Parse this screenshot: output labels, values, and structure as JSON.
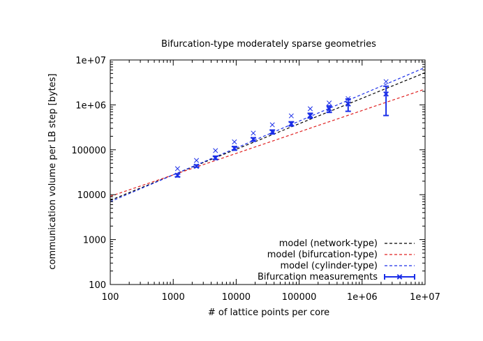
{
  "chart_data": {
    "type": "scatter",
    "title": "Bifurcation-type moderately sparse geometries",
    "xlabel": "# of lattice points per core",
    "ylabel": "communication volume per LB step [bytes]",
    "xscale": "log",
    "yscale": "log",
    "xlim": [
      100,
      10000000
    ],
    "ylim": [
      100,
      10000000
    ],
    "x_ticks": [
      {
        "value": 100,
        "label": "100"
      },
      {
        "value": 1000,
        "label": "1000"
      },
      {
        "value": 10000,
        "label": "10000"
      },
      {
        "value": 100000,
        "label": "100000"
      },
      {
        "value": 1000000,
        "label": "1e+06"
      },
      {
        "value": 10000000,
        "label": "1e+07"
      }
    ],
    "y_ticks": [
      {
        "value": 100,
        "label": "100"
      },
      {
        "value": 1000,
        "label": "1000"
      },
      {
        "value": 10000,
        "label": "10000"
      },
      {
        "value": 100000,
        "label": "100000"
      },
      {
        "value": 1000000,
        "label": "1e+06"
      },
      {
        "value": 10000000,
        "label": "1e+07"
      }
    ],
    "grid": false,
    "legend_position": "bottom-right",
    "series": [
      {
        "name": "model (network-type)",
        "kind": "line",
        "style": "dashed",
        "color": "#000000",
        "x": [
          100,
          10000000
        ],
        "y": [
          7500,
          5200000
        ]
      },
      {
        "name": "model (bifurcation-type)",
        "kind": "line",
        "style": "dashed",
        "color": "#e02020",
        "x": [
          100,
          10000000
        ],
        "y": [
          9200,
          2250000
        ]
      },
      {
        "name": "model (cylinder-type)",
        "kind": "line",
        "style": "dashed",
        "color": "#1a2ee8",
        "x": [
          100,
          10000000
        ],
        "y": [
          7000,
          6800000
        ]
      },
      {
        "name": "Bifurcation measurements",
        "kind": "errorbars",
        "color": "#1a2ee8",
        "x": [
          1170,
          2340,
          4690,
          9370,
          18700,
          37500,
          75000,
          150000,
          300000,
          600000,
          2400000
        ],
        "y": [
          27000,
          43000,
          66000,
          108000,
          170000,
          250000,
          380000,
          580000,
          820000,
          1050000,
          1750000
        ],
        "ylow": [
          25000,
          41000,
          61000,
          98000,
          155000,
          225000,
          340000,
          510000,
          680000,
          720000,
          580000
        ],
        "yhigh": [
          29000,
          46000,
          72000,
          118000,
          185000,
          275000,
          420000,
          650000,
          950000,
          1350000,
          2600000
        ]
      },
      {
        "kind": "points",
        "marker": "x",
        "color": "#1a2ee8",
        "x": [
          1170,
          2340,
          4690,
          9370,
          18700,
          37500,
          75000,
          150000,
          300000,
          600000,
          2400000
        ],
        "y": [
          38000,
          58000,
          96000,
          150000,
          235000,
          360000,
          570000,
          820000,
          1100000,
          1380000,
          3300000
        ]
      }
    ]
  }
}
